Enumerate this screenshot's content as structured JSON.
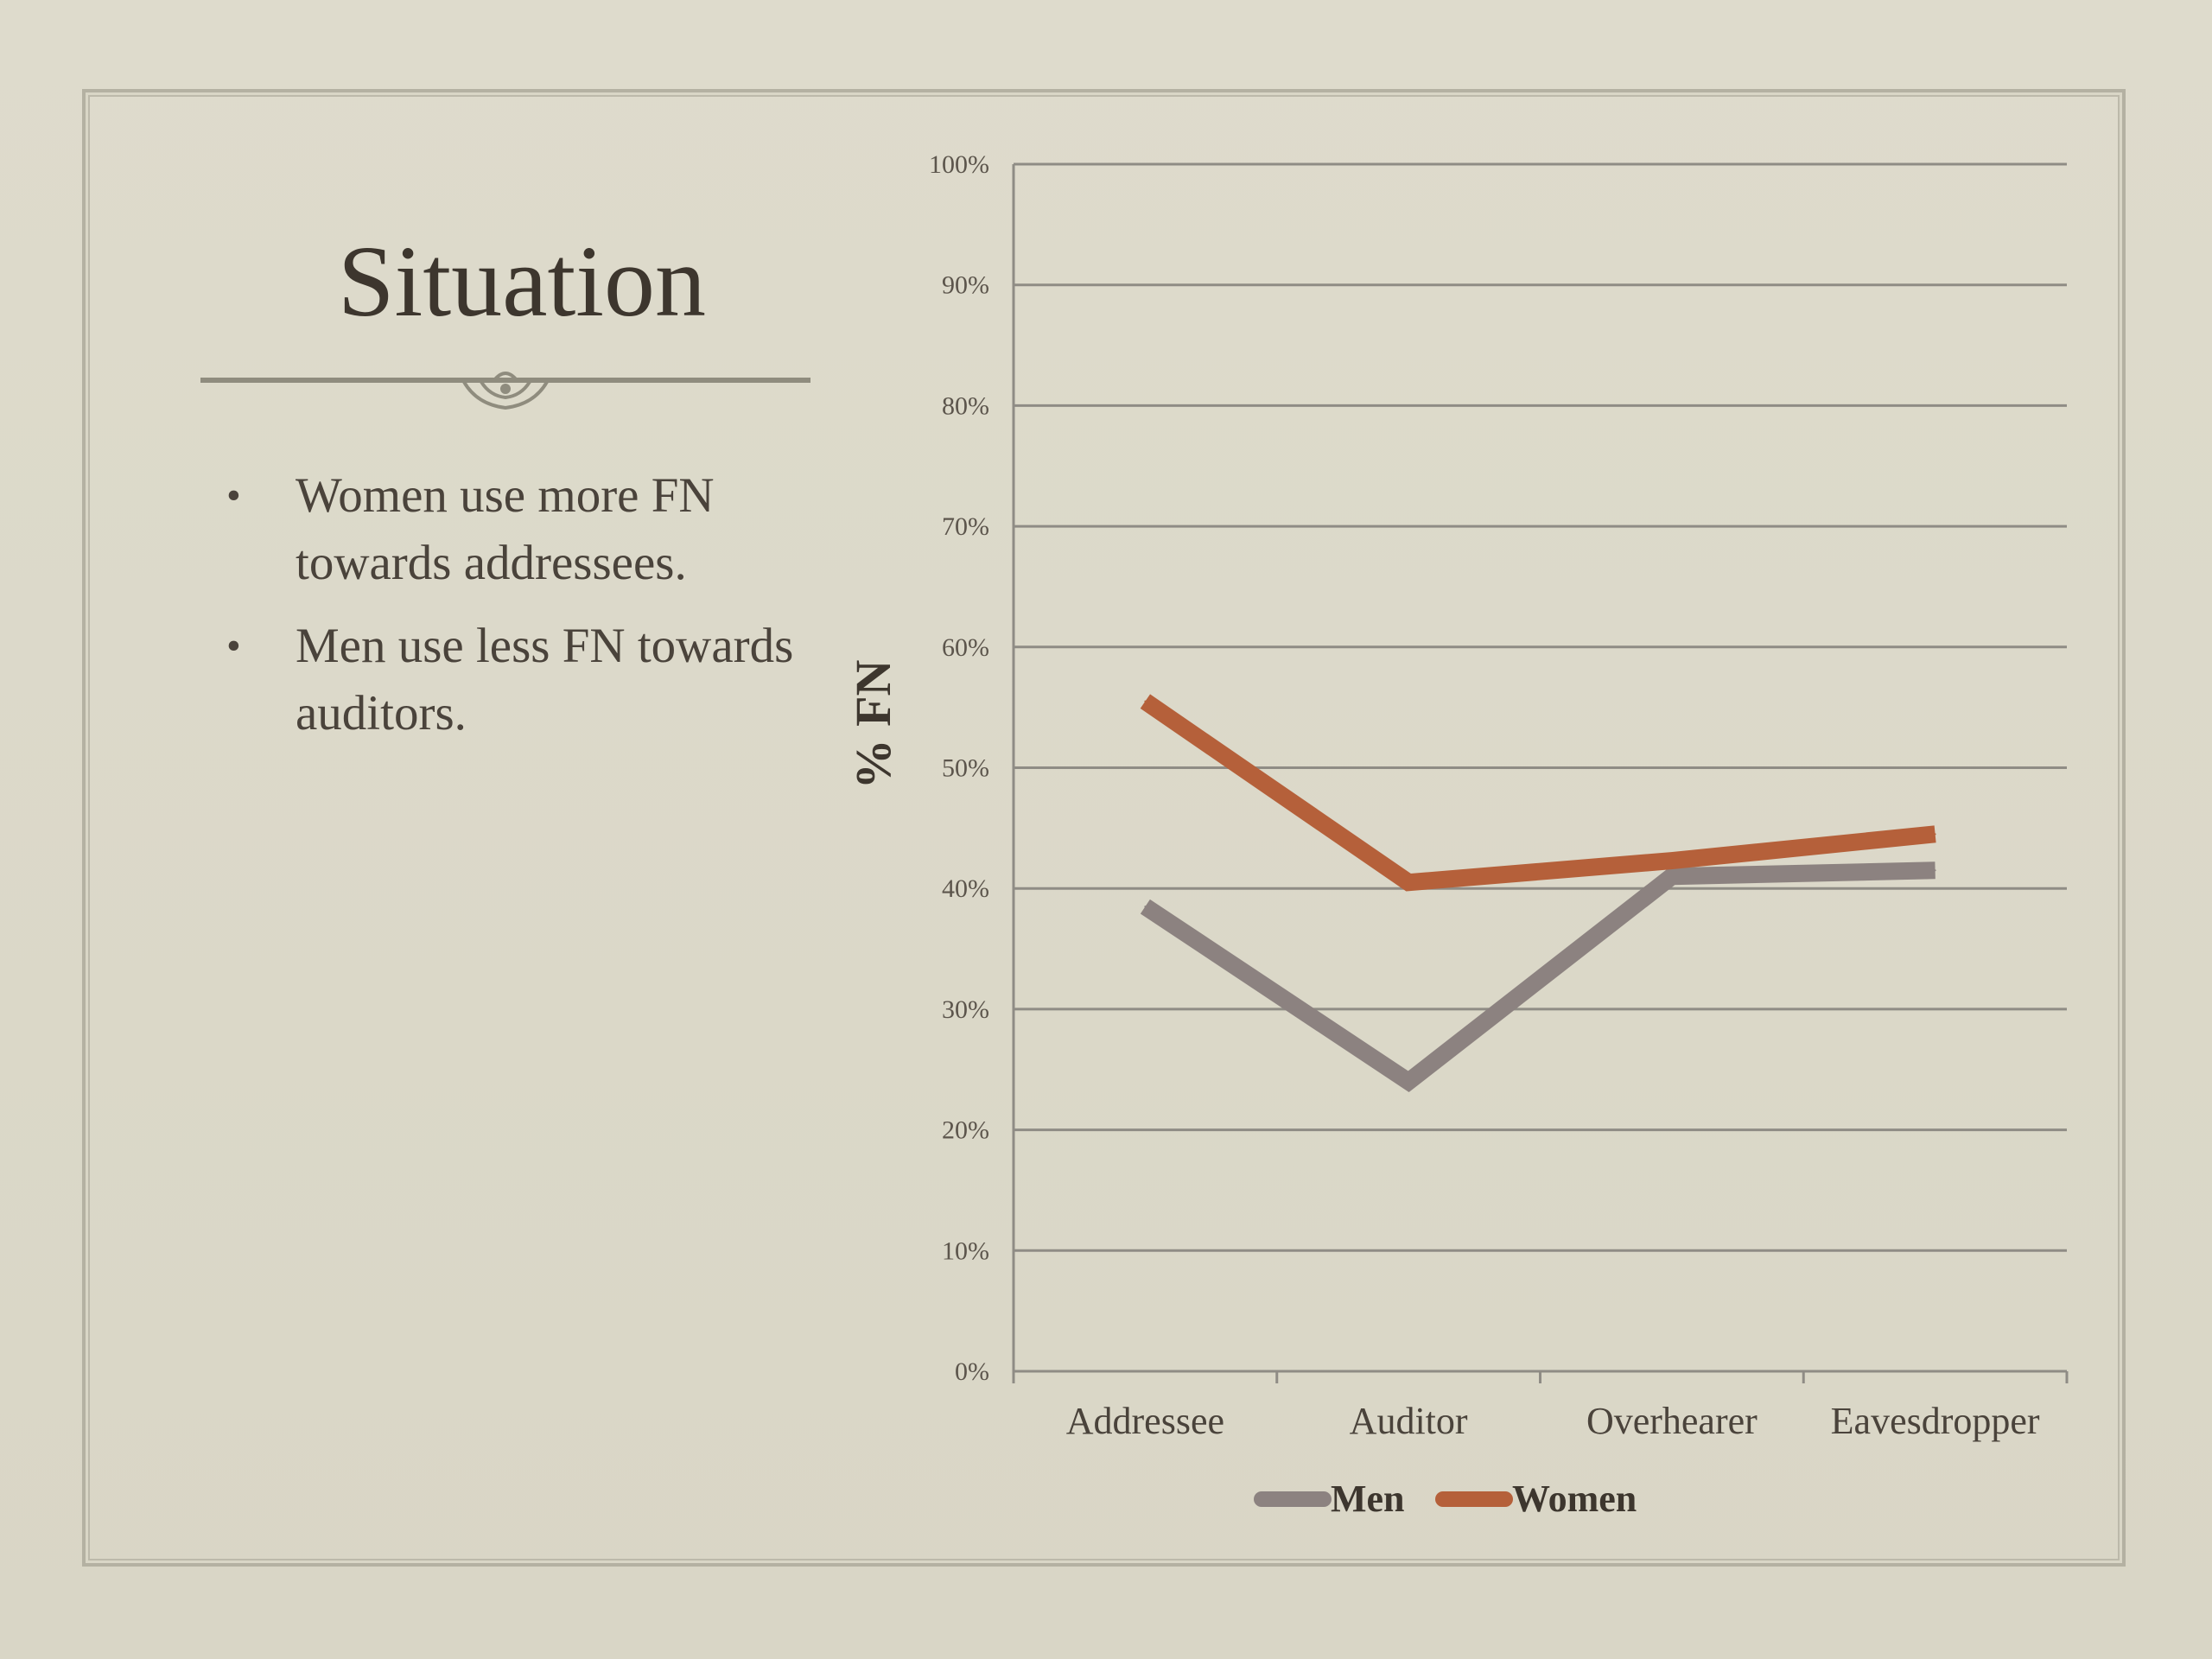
{
  "slide": {
    "title": "Situation",
    "bullets": [
      "Women use more FN towards addressees.",
      "Men use less FN towards auditors."
    ]
  },
  "colors": {
    "background": "#dcd9c9",
    "text": "#3d362e",
    "men": "#8c8280",
    "women": "#b5603a",
    "grid": "#8f8c85"
  },
  "chart_data": {
    "type": "line",
    "categories": [
      "Addressee",
      "Auditor",
      "Overhearer",
      "Eavesdropper"
    ],
    "series": [
      {
        "name": "Men",
        "values": [
          38.5,
          24,
          41,
          41.5
        ]
      },
      {
        "name": "Women",
        "values": [
          55.5,
          40.5,
          42.3,
          44.5
        ]
      }
    ],
    "yticks": [
      "0%",
      "10%",
      "20%",
      "30%",
      "40%",
      "50%",
      "60%",
      "70%",
      "80%",
      "90%",
      "100%"
    ],
    "ylim": [
      0,
      100
    ],
    "ylabel": "% FN",
    "xlabel": "",
    "grid": true,
    "legend_position": "bottom"
  }
}
